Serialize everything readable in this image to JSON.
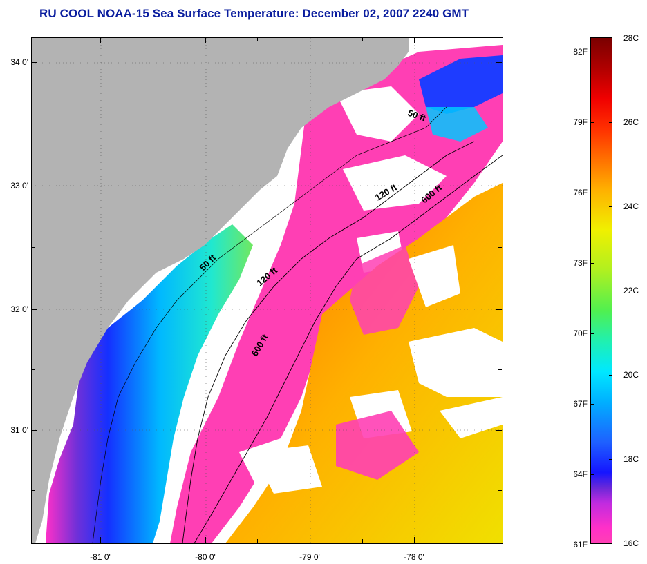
{
  "title": "RU COOL  NOAA-15  Sea Surface Temperature:  December 02, 2007 2240 GMT",
  "map": {
    "lat_ticks": [
      "34 0'",
      "33 0'",
      "32 0'",
      "31 0'"
    ],
    "lon_ticks": [
      "-81 0'",
      "-80 0'",
      "-79 0'",
      "-78 0'"
    ],
    "depth_contours": [
      "50 ft",
      "120 ft",
      "600 ft",
      "50 ft",
      "120 ft",
      "600 ft"
    ],
    "colors": {
      "land": "#b3b3b3",
      "cloud": "#ffffff",
      "coldest": "#ff3fb4",
      "cool": "#1e3cff",
      "mild": "#00d8ff",
      "warm": "#f0e000",
      "warmest": "#ff6a00"
    }
  },
  "colorbar": {
    "fahrenheit": [
      "82F",
      "79F",
      "76F",
      "73F",
      "70F",
      "67F",
      "64F",
      "61F"
    ],
    "celsius": [
      "28C",
      "26C",
      "24C",
      "22C",
      "20C",
      "18C",
      "16C"
    ]
  }
}
